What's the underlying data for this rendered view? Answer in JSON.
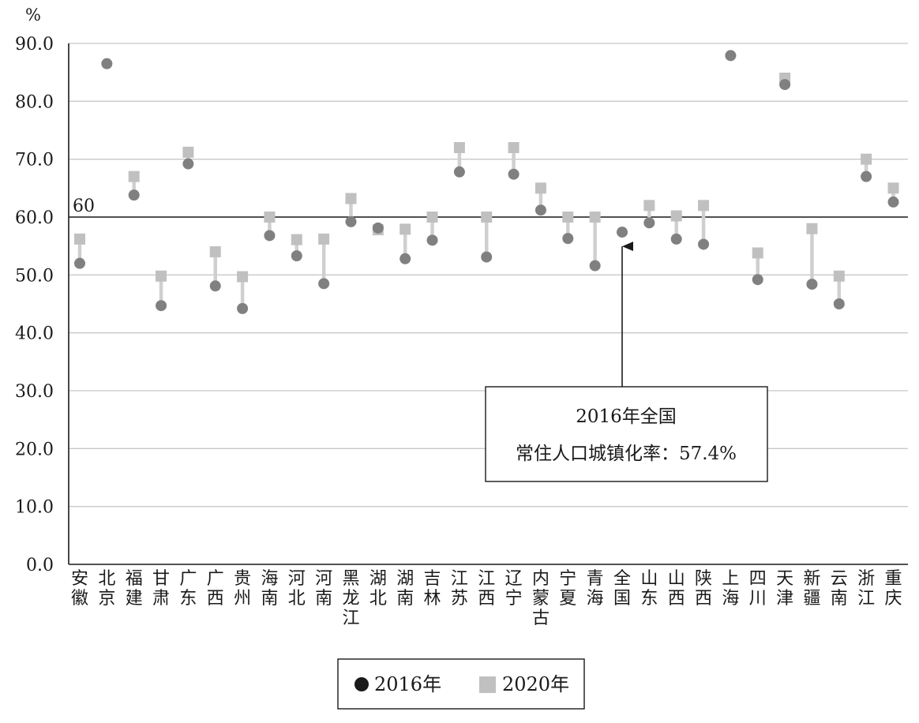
{
  "chart_data": {
    "type": "scatter",
    "y_unit": "%",
    "ylim": [
      0,
      90
    ],
    "y_ticks": [
      "0.0",
      "10.0",
      "20.0",
      "30.0",
      "40.0",
      "50.0",
      "60.0",
      "70.0",
      "80.0",
      "90.0"
    ],
    "grid": true,
    "reference_line": {
      "value": 60,
      "label": "60"
    },
    "categories": [
      "安徽",
      "北京",
      "福建",
      "甘肃",
      "广东",
      "广西",
      "贵州",
      "海南",
      "河北",
      "河南",
      "黑龙江",
      "湖北",
      "湖南",
      "吉林",
      "江苏",
      "江西",
      "辽宁",
      "内蒙古",
      "宁夏",
      "青海",
      "全国",
      "山东",
      "山西",
      "陕西",
      "上海",
      "四川",
      "天津",
      "新疆",
      "云南",
      "浙江",
      "重庆"
    ],
    "series": [
      {
        "name": "2016年",
        "marker": "circle",
        "color": "#808080",
        "values": [
          52.0,
          86.5,
          63.8,
          44.7,
          69.2,
          48.1,
          44.2,
          56.8,
          53.3,
          48.5,
          59.2,
          58.1,
          52.8,
          56.0,
          67.8,
          53.1,
          67.4,
          61.2,
          56.3,
          51.6,
          57.4,
          59.0,
          56.2,
          55.3,
          87.9,
          49.2,
          82.9,
          48.4,
          45.0,
          67.0,
          62.6
        ]
      },
      {
        "name": "2020年",
        "marker": "square",
        "color": "#c0c0c0",
        "values": [
          56.2,
          null,
          67.0,
          49.8,
          71.2,
          54.0,
          49.7,
          60.0,
          56.1,
          56.2,
          63.2,
          57.8,
          57.9,
          60.0,
          72.0,
          60.0,
          72.0,
          65.0,
          60.0,
          60.0,
          null,
          62.0,
          60.2,
          62.0,
          null,
          53.8,
          84.0,
          58.0,
          49.8,
          70.0,
          65.0
        ]
      }
    ],
    "annotation": {
      "line1": "2016年全国",
      "line2": "常住人口城镇化率：57.4%",
      "points_to": "全国"
    },
    "legend": {
      "position": "bottom"
    }
  }
}
